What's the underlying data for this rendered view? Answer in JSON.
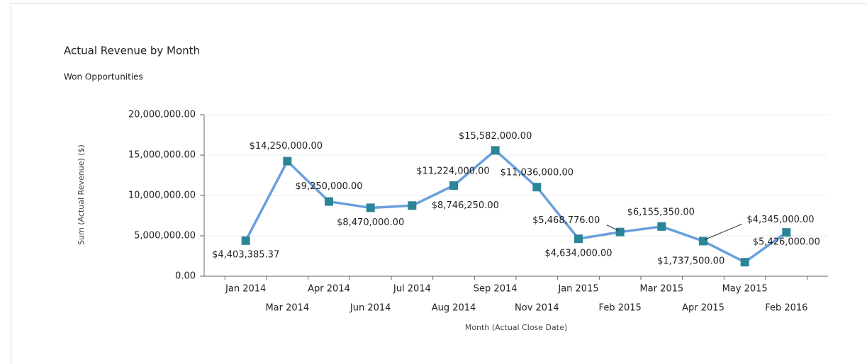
{
  "chart_data": {
    "type": "line",
    "title": "Actual Revenue by Month",
    "subtitle": "Won Opportunities",
    "x_label": "Month (Actual Close Date)",
    "y_label": "Sum (Actual Revenue) ($)",
    "categories": [
      "Jan 2014",
      "Mar 2014",
      "Apr 2014",
      "Jun 2014",
      "Jul 2014",
      "Aug 2014",
      "Sep 2014",
      "Nov 2014",
      "Jan 2015",
      "Feb 2015",
      "Mar 2015",
      "Apr 2015",
      "May 2015",
      "Feb 2016"
    ],
    "values": [
      4403385.37,
      14250000,
      9250000,
      8470000,
      8746250,
      11224000,
      15582000,
      11036000,
      4634000,
      5468776,
      6155350,
      4345000,
      1737500,
      5426000
    ],
    "value_labels": [
      "$4,403,385.37",
      "$14,250,000.00",
      "$9,250,000.00",
      "$8,470,000.00",
      "$8,746,250.00",
      "$11,224,000.00",
      "$15,582,000.00",
      "$11,036,000.00",
      "$4,634,000.00",
      "$5,468,776.00",
      "$6,155,350.00",
      "$4,345,000.00",
      "$1,737,500.00",
      "$5,426,000.00"
    ],
    "line_color": "#6a9fdc",
    "marker_color": "#2a8597",
    "ylim": [
      0,
      20000000
    ],
    "yticks": [
      {
        "value": 0,
        "label": "0.00"
      },
      {
        "value": 5000000,
        "label": "5,000,000.00"
      },
      {
        "value": 10000000,
        "label": "10,000,000.00"
      },
      {
        "value": 15000000,
        "label": "15,000,000.00"
      },
      {
        "value": 20000000,
        "label": "20,000,000.00"
      }
    ],
    "grid": true
  }
}
